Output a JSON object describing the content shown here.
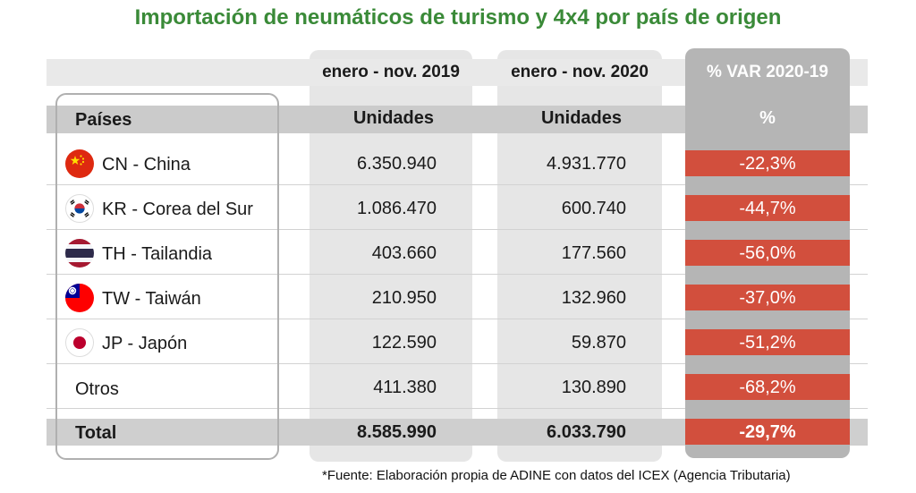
{
  "title": "Importación de neumáticos de turismo y 4x4 por país de origen",
  "footnote": "*Fuente: Elaboración propia de ADINE con datos del ICEX (Agencia Tributaria)",
  "colors": {
    "title": "#3a8a38",
    "var_cell": "#d24f3d",
    "var_header": "#b5b5b5"
  },
  "chart_data": {
    "type": "table",
    "title": "Importación de neumáticos de turismo y 4x4 por país de origen",
    "period_headers": [
      "enero - nov. 2019",
      "enero - nov. 2020",
      "% VAR 2020-19"
    ],
    "columns": [
      "Países",
      "Unidades",
      "Unidades",
      "%"
    ],
    "rows": [
      {
        "country": "CN - China",
        "flag": "china-flag-icon",
        "v2019": "6.350.940",
        "v2020": "4.931.770",
        "var": "-22,3%"
      },
      {
        "country": "KR - Corea del Sur",
        "flag": "south-korea-flag-icon",
        "v2019": "1.086.470",
        "v2020": "600.740",
        "var": "-44,7%"
      },
      {
        "country": "TH - Tailandia",
        "flag": "thailand-flag-icon",
        "v2019": "403.660",
        "v2020": "177.560",
        "var": "-56,0%"
      },
      {
        "country": "TW - Taiwán",
        "flag": "taiwan-flag-icon",
        "v2019": "210.950",
        "v2020": "132.960",
        "var": "-37,0%"
      },
      {
        "country": "JP - Japón",
        "flag": "japan-flag-icon",
        "v2019": "122.590",
        "v2020": "59.870",
        "var": "-51,2%"
      },
      {
        "country": "Otros",
        "flag": "",
        "v2019": "411.380",
        "v2020": "130.890",
        "var": "-68,2%"
      }
    ],
    "total": {
      "label": "Total",
      "v2019": "8.585.990",
      "v2020": "6.033.790",
      "var": "-29,7%"
    }
  }
}
